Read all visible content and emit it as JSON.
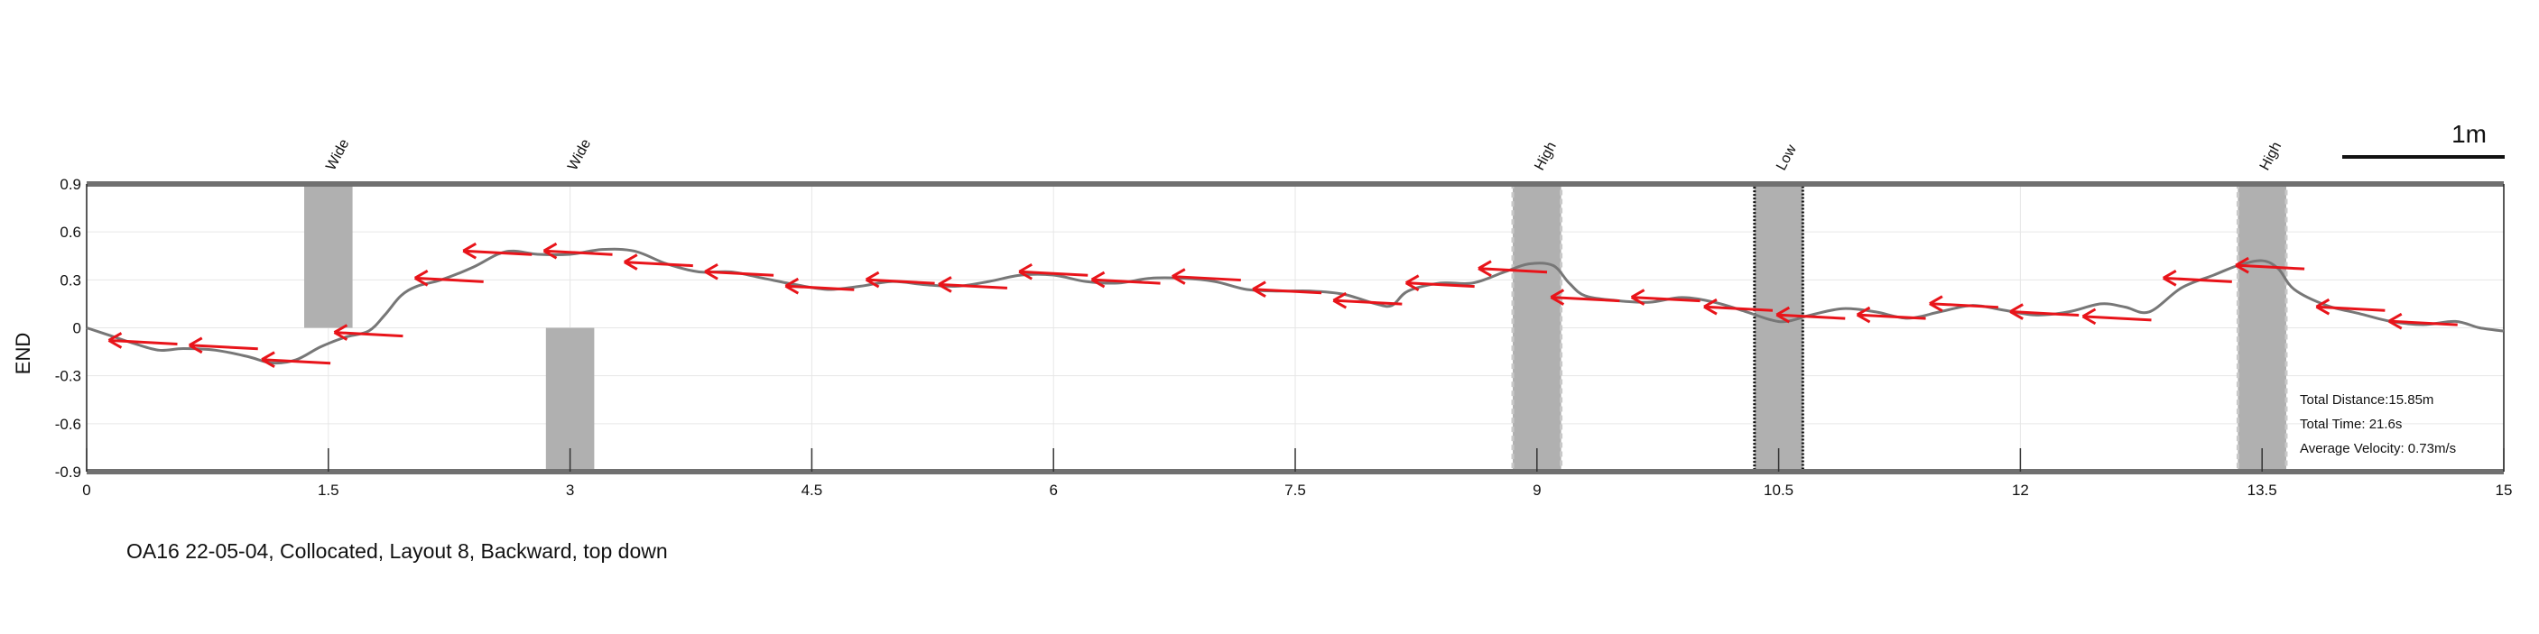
{
  "chart_data": {
    "type": "line",
    "ylabel": "END",
    "xlabel": "",
    "xlim": [
      0,
      15
    ],
    "ylim": [
      -0.9,
      0.9
    ],
    "xticks": [
      "0",
      "1.5",
      "3",
      "4.5",
      "6",
      "7.5",
      "9",
      "10.5",
      "12",
      "13.5",
      "15"
    ],
    "yticks": [
      "0.9",
      "0.6",
      "0.3",
      "0",
      "-0.3",
      "-0.6",
      "-0.9"
    ],
    "grid": true,
    "scale_bar_label": "1m",
    "obstacles": [
      {
        "label": "Wide",
        "x0": 1.35,
        "x1": 1.65,
        "y0": 0.0,
        "y1": 0.9,
        "style": "solid"
      },
      {
        "label": "Wide",
        "x0": 2.85,
        "x1": 3.15,
        "y0": -0.9,
        "y1": 0.0,
        "style": "solid"
      },
      {
        "label": "High",
        "x0": 8.85,
        "x1": 9.15,
        "y0": -0.9,
        "y1": 0.9,
        "style": "dashed"
      },
      {
        "label": "Low",
        "x0": 10.35,
        "x1": 10.65,
        "y0": -0.9,
        "y1": 0.9,
        "style": "dotted"
      },
      {
        "label": "High",
        "x0": 13.35,
        "x1": 13.65,
        "y0": -0.9,
        "y1": 0.9,
        "style": "dashed"
      }
    ],
    "path": {
      "x": [
        0,
        0.15,
        0.3,
        0.45,
        0.6,
        0.8,
        1.0,
        1.15,
        1.3,
        1.45,
        1.6,
        1.75,
        1.85,
        1.95,
        2.05,
        2.2,
        2.4,
        2.55,
        2.65,
        2.8,
        3.0,
        3.2,
        3.4,
        3.6,
        3.8,
        4.0,
        4.2,
        4.4,
        4.6,
        4.8,
        5.0,
        5.2,
        5.4,
        5.6,
        5.8,
        6.0,
        6.2,
        6.4,
        6.6,
        6.8,
        7.0,
        7.2,
        7.4,
        7.6,
        7.8,
        8.0,
        8.1,
        8.2,
        8.4,
        8.6,
        8.8,
        8.95,
        9.1,
        9.2,
        9.3,
        9.5,
        9.7,
        9.9,
        10.1,
        10.3,
        10.45,
        10.55,
        10.7,
        10.9,
        11.1,
        11.3,
        11.5,
        11.7,
        11.9,
        12.1,
        12.3,
        12.5,
        12.65,
        12.8,
        13.0,
        13.2,
        13.35,
        13.5,
        13.6,
        13.7,
        13.9,
        14.1,
        14.3,
        14.5,
        14.7,
        14.85,
        15.0
      ],
      "y": [
        0.0,
        -0.05,
        -0.1,
        -0.14,
        -0.13,
        -0.14,
        -0.18,
        -0.22,
        -0.2,
        -0.12,
        -0.06,
        -0.02,
        0.08,
        0.2,
        0.26,
        0.3,
        0.38,
        0.46,
        0.48,
        0.46,
        0.46,
        0.49,
        0.48,
        0.4,
        0.35,
        0.35,
        0.31,
        0.27,
        0.24,
        0.26,
        0.29,
        0.27,
        0.26,
        0.29,
        0.33,
        0.33,
        0.29,
        0.28,
        0.31,
        0.31,
        0.29,
        0.24,
        0.23,
        0.23,
        0.21,
        0.15,
        0.14,
        0.23,
        0.28,
        0.28,
        0.35,
        0.4,
        0.39,
        0.28,
        0.2,
        0.17,
        0.16,
        0.19,
        0.16,
        0.1,
        0.05,
        0.04,
        0.08,
        0.12,
        0.1,
        0.06,
        0.1,
        0.14,
        0.11,
        0.08,
        0.1,
        0.15,
        0.13,
        0.1,
        0.25,
        0.33,
        0.39,
        0.42,
        0.37,
        0.24,
        0.14,
        0.09,
        0.04,
        0.02,
        0.04,
        0.0,
        -0.02
      ]
    },
    "arrows": [
      {
        "x": 0.35,
        "y": -0.09
      },
      {
        "x": 0.85,
        "y": -0.12
      },
      {
        "x": 1.3,
        "y": -0.21
      },
      {
        "x": 1.75,
        "y": -0.04
      },
      {
        "x": 2.25,
        "y": 0.3
      },
      {
        "x": 2.55,
        "y": 0.47
      },
      {
        "x": 3.05,
        "y": 0.47
      },
      {
        "x": 3.55,
        "y": 0.4
      },
      {
        "x": 4.05,
        "y": 0.34
      },
      {
        "x": 4.55,
        "y": 0.25
      },
      {
        "x": 5.05,
        "y": 0.29
      },
      {
        "x": 5.5,
        "y": 0.26
      },
      {
        "x": 6.0,
        "y": 0.34
      },
      {
        "x": 6.45,
        "y": 0.29
      },
      {
        "x": 6.95,
        "y": 0.31
      },
      {
        "x": 7.45,
        "y": 0.23
      },
      {
        "x": 7.95,
        "y": 0.16
      },
      {
        "x": 8.4,
        "y": 0.27
      },
      {
        "x": 8.85,
        "y": 0.36
      },
      {
        "x": 9.3,
        "y": 0.18
      },
      {
        "x": 9.8,
        "y": 0.18
      },
      {
        "x": 10.25,
        "y": 0.12
      },
      {
        "x": 10.7,
        "y": 0.07
      },
      {
        "x": 11.2,
        "y": 0.07
      },
      {
        "x": 11.65,
        "y": 0.14
      },
      {
        "x": 12.15,
        "y": 0.09
      },
      {
        "x": 12.6,
        "y": 0.06
      },
      {
        "x": 13.1,
        "y": 0.3
      },
      {
        "x": 13.55,
        "y": 0.38
      },
      {
        "x": 14.05,
        "y": 0.12
      },
      {
        "x": 14.5,
        "y": 0.03
      }
    ],
    "colors": {
      "path": "#777777",
      "arrow": "#e8141a",
      "obstacle": "#b0b0b0",
      "frame": "#707070",
      "grid": "#e6e6e6"
    }
  },
  "caption": "OA16 22-05-04, Collocated, Layout 8, Backward, top down",
  "stats": {
    "distance": "Total Distance:15.85m",
    "time": "Total Time: 21.6s",
    "velocity": "Average Velocity: 0.73m/s"
  }
}
